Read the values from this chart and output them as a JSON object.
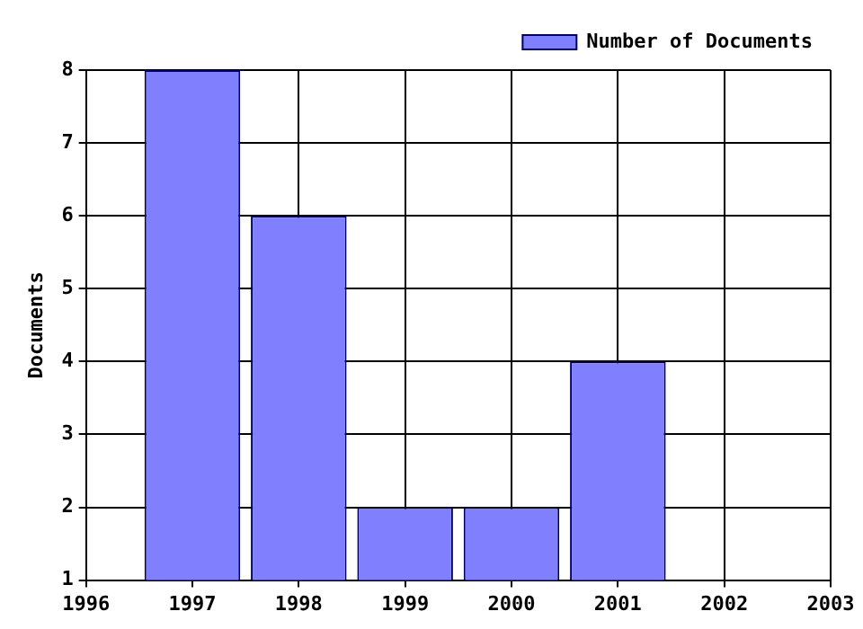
{
  "chart_data": {
    "type": "bar",
    "ylabel": "Documents",
    "x": [
      1997,
      1998,
      1999,
      2000,
      2001
    ],
    "series": [
      {
        "name": "Number of Documents",
        "color": "#8080ff",
        "values": [
          8,
          6,
          2,
          2,
          4
        ]
      }
    ],
    "xlim": [
      1996,
      2003
    ],
    "xticks": [
      1996,
      1997,
      1998,
      1999,
      2000,
      2001,
      2002,
      2003
    ],
    "ylim": [
      1,
      8
    ],
    "yticks": [
      1,
      2,
      3,
      4,
      5,
      6,
      7,
      8
    ],
    "grid": true,
    "legend": "top right"
  }
}
